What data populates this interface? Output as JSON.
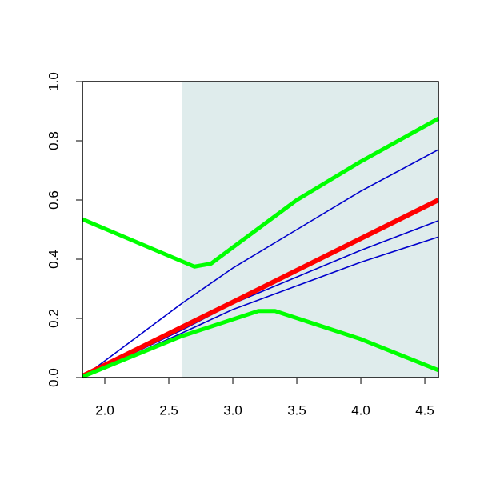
{
  "chart_data": {
    "type": "line",
    "xlim": [
      1.825,
      4.606
    ],
    "ylim": [
      0,
      1
    ],
    "xticks": [
      {
        "value": 2,
        "label": "2.0"
      },
      2.5,
      {
        "value": 3,
        "label": "3.0"
      },
      3.5,
      {
        "value": 4,
        "label": "4.0"
      },
      4.5
    ],
    "yticks": [
      {
        "value": 0,
        "label": "0.0"
      },
      0.2,
      0.4,
      0.6,
      0.8,
      {
        "value": 1,
        "label": "1.0"
      }
    ],
    "shaded_region": {
      "xmin": 2.6,
      "color": "#dfecec"
    },
    "series": [
      {
        "color": "#0000cc",
        "line_width": 1.6,
        "x": [
          1.825,
          2.6,
          3.0,
          3.5,
          4.0,
          4.606
        ],
        "values": [
          0.0,
          0.25,
          0.37,
          0.5,
          0.63,
          0.77
        ]
      },
      {
        "color": "#0000cc",
        "line_width": 1.6,
        "x": [
          1.825,
          2.6,
          3.0,
          3.5,
          4.0,
          4.606
        ],
        "values": [
          0.0,
          0.16,
          0.25,
          0.34,
          0.43,
          0.53
        ]
      },
      {
        "color": "#0000cc",
        "line_width": 1.6,
        "x": [
          1.825,
          2.6,
          3.0,
          3.5,
          4.0,
          4.606
        ],
        "values": [
          0.0,
          0.15,
          0.23,
          0.31,
          0.39,
          0.475
        ]
      },
      {
        "color": "#ff0000",
        "line_width": 6,
        "x": [
          1.825,
          3.0,
          4.606
        ],
        "values": [
          0.005,
          0.255,
          0.6
        ]
      },
      {
        "color": "#00ff00",
        "line_width": 5,
        "x": [
          1.825,
          2.7,
          2.83,
          3.0,
          3.5,
          4.0,
          4.606
        ],
        "values": [
          0.535,
          0.375,
          0.385,
          0.44,
          0.6,
          0.73,
          0.875
        ]
      },
      {
        "color": "#00ff00",
        "line_width": 5,
        "x": [
          1.825,
          2.6,
          3.2,
          3.33,
          4.0,
          4.606
        ],
        "values": [
          0.003,
          0.14,
          0.225,
          0.225,
          0.13,
          0.025
        ]
      }
    ]
  }
}
